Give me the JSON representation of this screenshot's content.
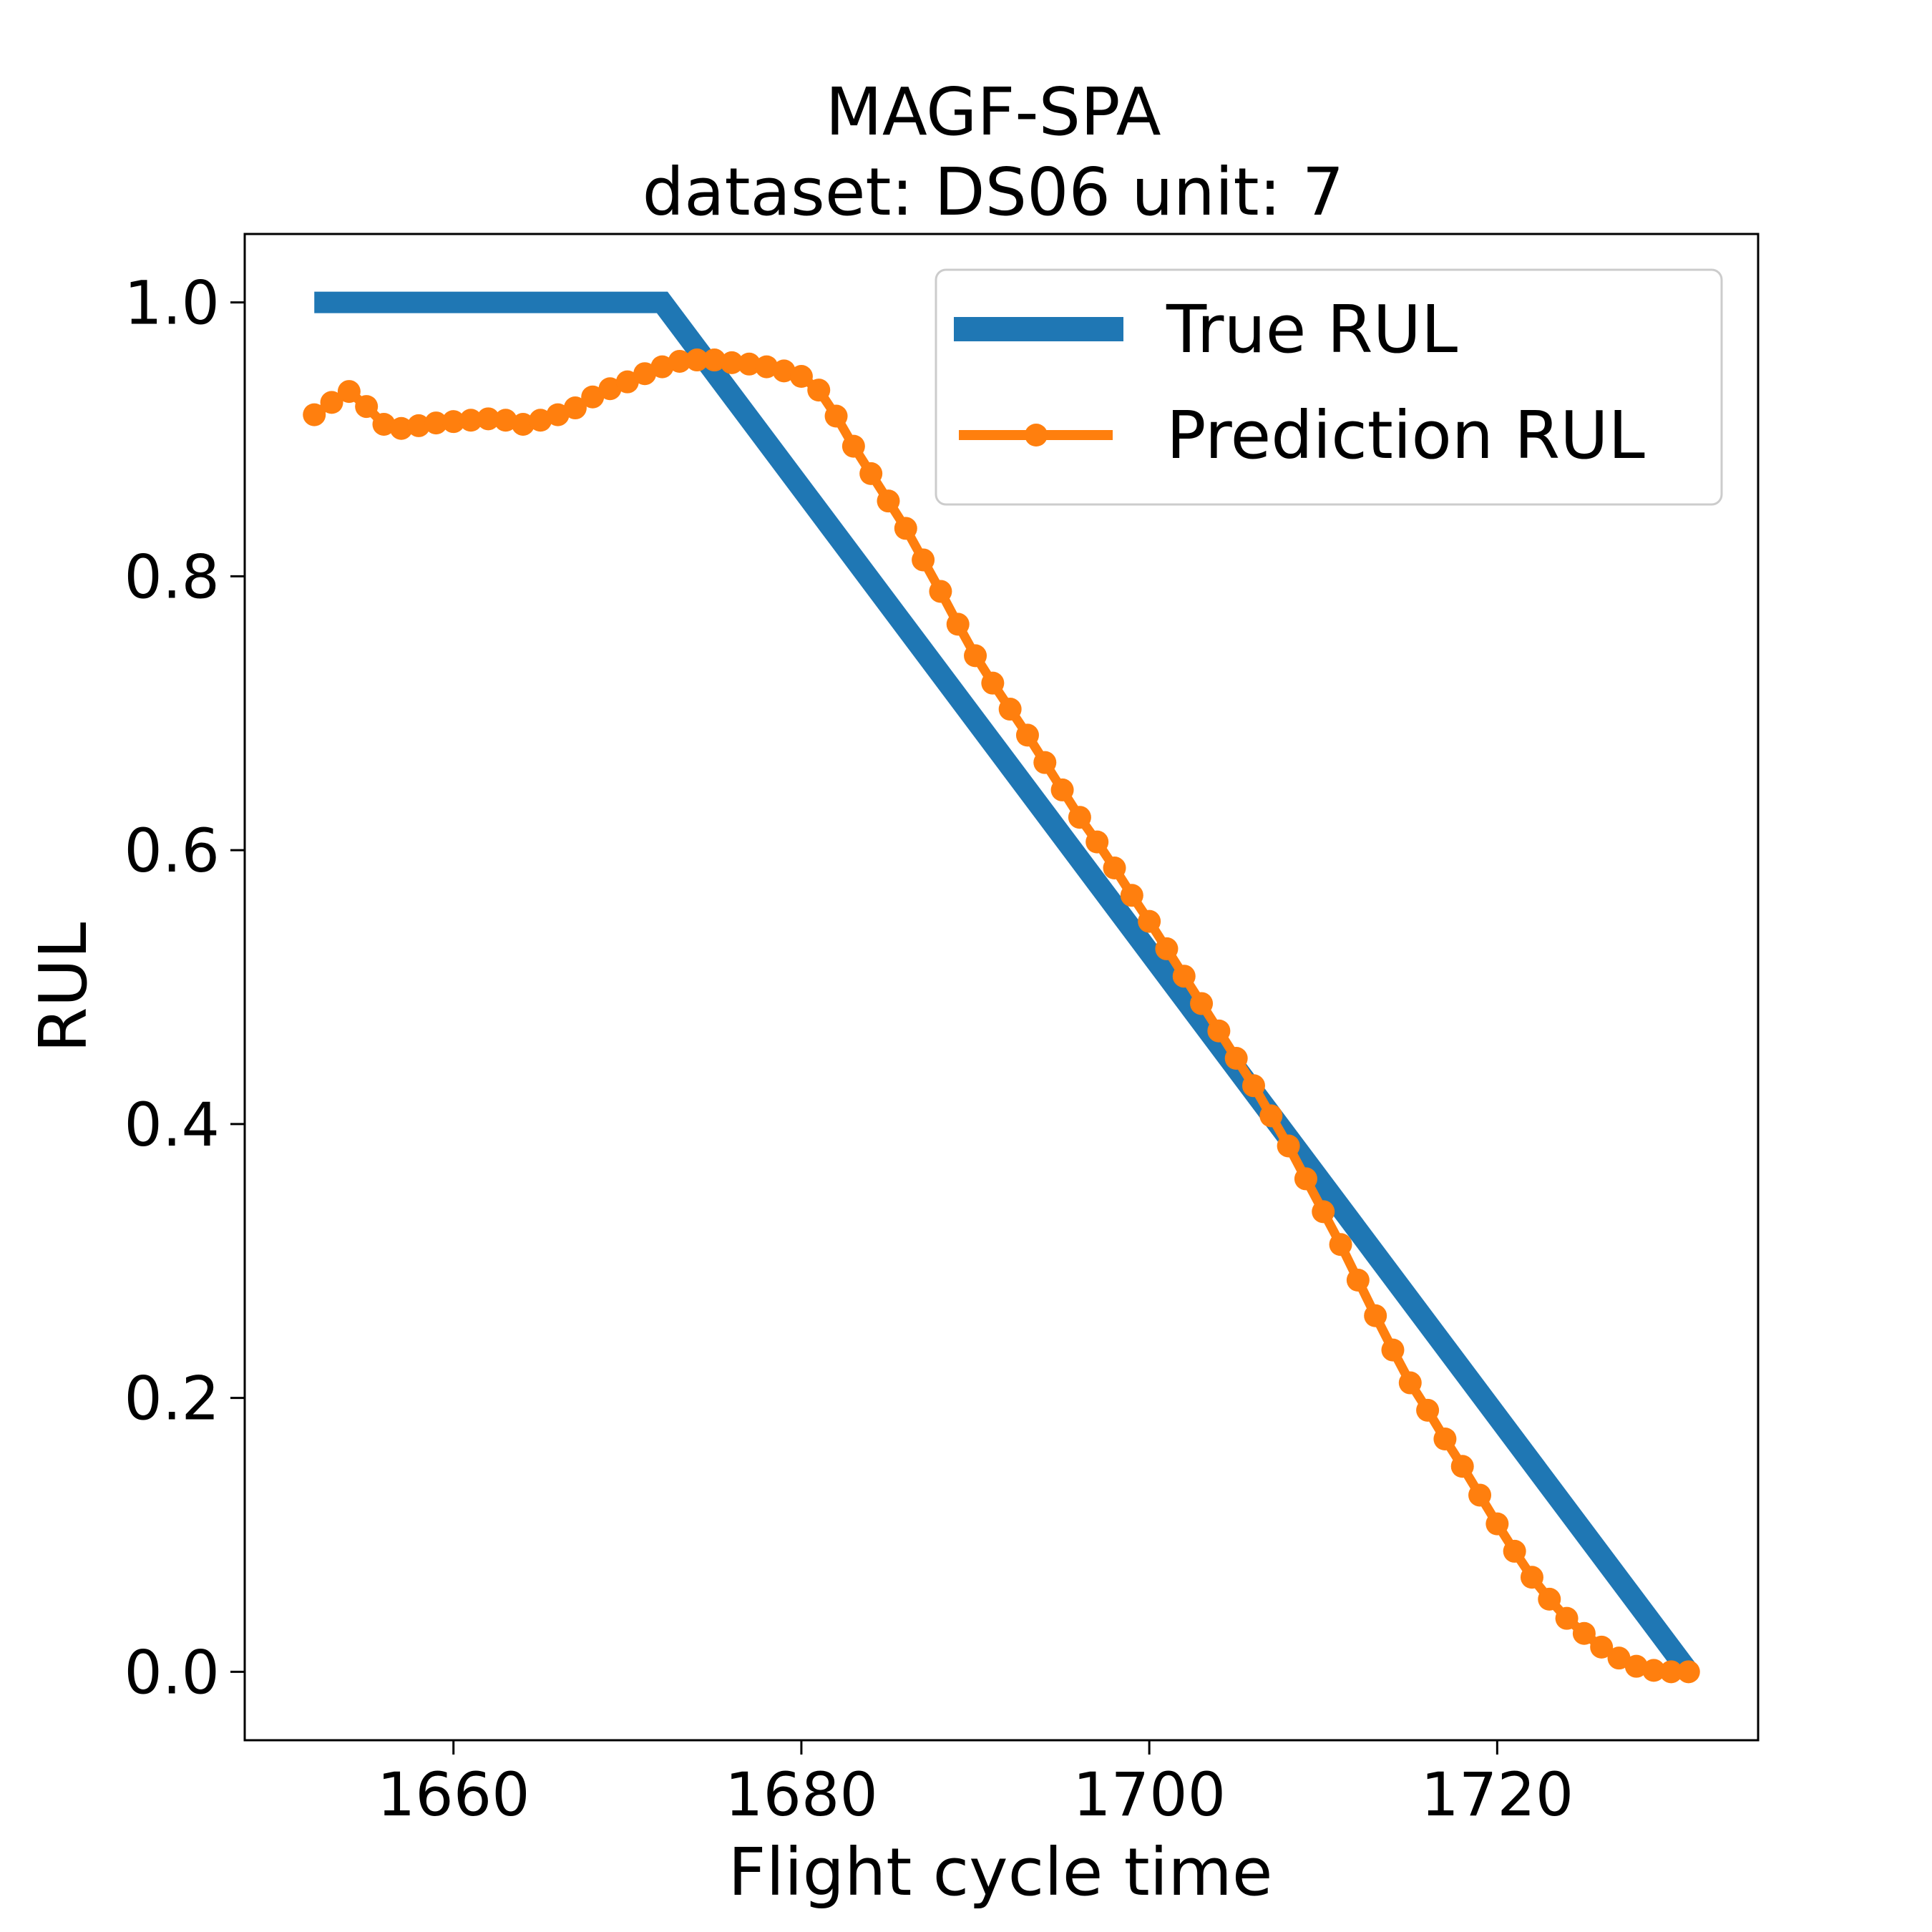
{
  "chart_data": {
    "type": "line",
    "title": "MAGF-SPA",
    "subtitle": "dataset: DS06 unit: 7",
    "xlabel": "Flight cycle time",
    "ylabel": "RUL",
    "xlim": [
      1648,
      1735
    ],
    "ylim": [
      -0.05,
      1.05
    ],
    "xticks": [
      1660,
      1680,
      1700,
      1720
    ],
    "xtick_labels": [
      "1660",
      "1680",
      "1700",
      "1720"
    ],
    "yticks": [
      0.0,
      0.2,
      0.4,
      0.6,
      0.8,
      1.0
    ],
    "ytick_labels": [
      "0.0",
      "0.2",
      "0.4",
      "0.6",
      "0.8",
      "1.0"
    ],
    "grid": false,
    "legend_position": "top-right",
    "series": [
      {
        "name": "True RUL",
        "color": "#1f77b4",
        "marker": "none",
        "x": [
          1652,
          1672,
          1731
        ],
        "y": [
          1.0,
          1.0,
          0.0
        ]
      },
      {
        "name": "Prediction RUL",
        "color": "#ff7f0e",
        "marker": "circle",
        "x": [
          1652,
          1653,
          1654,
          1655,
          1656,
          1657,
          1658,
          1659,
          1660,
          1661,
          1662,
          1663,
          1664,
          1665,
          1666,
          1667,
          1668,
          1669,
          1670,
          1671,
          1672,
          1673,
          1674,
          1675,
          1676,
          1677,
          1678,
          1679,
          1680,
          1681,
          1682,
          1683,
          1684,
          1685,
          1686,
          1687,
          1688,
          1689,
          1690,
          1691,
          1692,
          1693,
          1694,
          1695,
          1696,
          1697,
          1698,
          1699,
          1700,
          1701,
          1702,
          1703,
          1704,
          1705,
          1706,
          1707,
          1708,
          1709,
          1710,
          1711,
          1712,
          1713,
          1714,
          1715,
          1716,
          1717,
          1718,
          1719,
          1720,
          1721,
          1722,
          1723,
          1724,
          1725,
          1726,
          1727,
          1728,
          1729,
          1730,
          1731
        ],
        "y": [
          0.918,
          0.927,
          0.935,
          0.924,
          0.911,
          0.908,
          0.91,
          0.912,
          0.913,
          0.914,
          0.915,
          0.914,
          0.911,
          0.914,
          0.918,
          0.923,
          0.931,
          0.937,
          0.942,
          0.948,
          0.953,
          0.957,
          0.958,
          0.958,
          0.956,
          0.955,
          0.953,
          0.95,
          0.946,
          0.936,
          0.917,
          0.895,
          0.875,
          0.855,
          0.835,
          0.812,
          0.789,
          0.765,
          0.742,
          0.722,
          0.703,
          0.684,
          0.664,
          0.644,
          0.624,
          0.606,
          0.587,
          0.567,
          0.548,
          0.528,
          0.508,
          0.488,
          0.468,
          0.448,
          0.428,
          0.406,
          0.384,
          0.36,
          0.336,
          0.312,
          0.286,
          0.26,
          0.235,
          0.211,
          0.191,
          0.17,
          0.15,
          0.129,
          0.108,
          0.088,
          0.069,
          0.053,
          0.039,
          0.028,
          0.018,
          0.01,
          0.004,
          0.001,
          0.0,
          0.0
        ]
      }
    ]
  }
}
